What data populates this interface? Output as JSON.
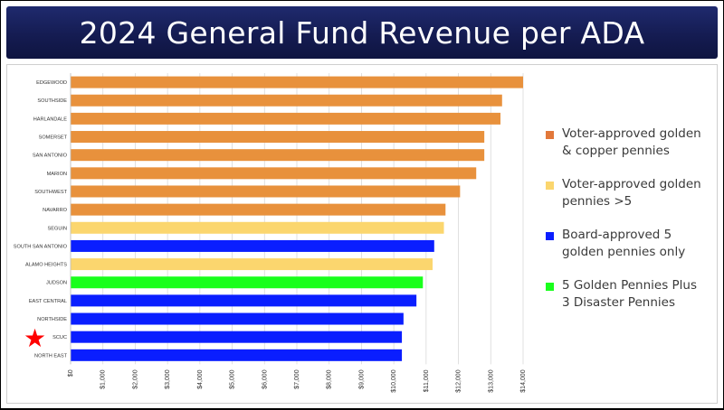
{
  "title": "2024 General Fund Revenue per ADA",
  "chart_data": {
    "type": "bar",
    "orientation": "horizontal",
    "categories": [
      "EDGEWOOD",
      "SOUTHSIDE",
      "HARLANDALE",
      "SOMERSET",
      "SAN ANTONIO",
      "MARION",
      "SOUTHWEST",
      "NAVARRO",
      "SEGUIN",
      "SOUTH SAN ANTONIO",
      "ALAMO HEIGHTS",
      "JUDSON",
      "EAST CENTRAL",
      "NORTHSIDE",
      "SCUC",
      "NORTH EAST"
    ],
    "values": [
      14000,
      13350,
      13300,
      12800,
      12800,
      12550,
      12050,
      11600,
      11550,
      11250,
      11200,
      10900,
      10700,
      10300,
      10250,
      10250
    ],
    "groups": [
      "golden_copper",
      "golden_copper",
      "golden_copper",
      "golden_copper",
      "golden_copper",
      "golden_copper",
      "golden_copper",
      "golden_copper",
      "golden_gt5",
      "board5",
      "golden_gt5",
      "disaster",
      "board5",
      "board5",
      "board5",
      "board5"
    ],
    "xlim": [
      0,
      14000
    ],
    "tick_values": [
      0,
      1000,
      2000,
      3000,
      4000,
      5000,
      6000,
      7000,
      8000,
      9000,
      10000,
      11000,
      12000,
      13000,
      14000
    ],
    "tick_labels": [
      "$0",
      "$1,000",
      "$2,000",
      "$3,000",
      "$4,000",
      "$5,000",
      "$6,000",
      "$7,000",
      "$8,000",
      "$9,000",
      "$10,000",
      "$11,000",
      "$12,000",
      "$13,000",
      "$14,000"
    ],
    "grid": true,
    "legend_position": "right",
    "legend": [
      {
        "key": "golden_copper",
        "label_lines": [
          "Voter-approved golden",
          "& copper pennies"
        ],
        "color": "#e8913c",
        "swatch_color": "#e2783a"
      },
      {
        "key": "golden_gt5",
        "label_lines": [
          "Voter-approved golden",
          "pennies >5"
        ],
        "color": "#fbd66e",
        "swatch_color": "#fbd66e"
      },
      {
        "key": "board5",
        "label_lines": [
          "Board-approved 5",
          "golden pennies only"
        ],
        "color": "#0a1eff",
        "swatch_color": "#0a1eff"
      },
      {
        "key": "disaster",
        "label_lines": [
          "5 Golden Pennies Plus",
          "3 Disaster Pennies"
        ],
        "color": "#19ff1c",
        "swatch_color": "#19ff1c"
      }
    ],
    "highlight": {
      "category": "SCUC",
      "marker": "★",
      "color": "#ff0000"
    }
  }
}
